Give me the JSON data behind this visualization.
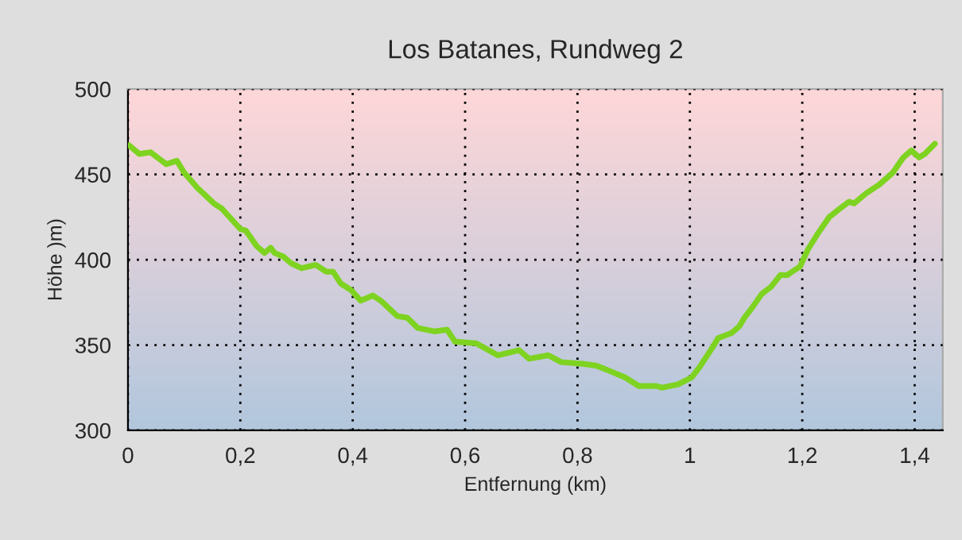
{
  "chart_data": {
    "type": "line",
    "title": "Los Batanes, Rundweg 2",
    "xlabel": "Entfernung (km)",
    "ylabel": "Höhe )m)",
    "xlim": [
      0,
      1.45
    ],
    "xticks": [
      0,
      {
        "value": 0.2,
        "label": "0,2"
      },
      {
        "value": 0.4,
        "label": "0,4"
      },
      {
        "value": 0.6,
        "label": "0,6"
      },
      {
        "value": 0.8,
        "label": "0,8"
      },
      1,
      {
        "value": 1.2,
        "label": "1,2"
      },
      {
        "value": 1.4,
        "label": "1,4"
      }
    ],
    "ylim": [
      300,
      500
    ],
    "yticks": [
      300,
      350,
      400,
      450,
      500
    ],
    "grid": true,
    "line_style": "solid",
    "marker": "none",
    "series": [
      {
        "color": "#7ed321",
        "x": [
          0.002,
          0.02,
          0.04,
          0.068,
          0.087,
          0.1,
          0.124,
          0.153,
          0.167,
          0.2,
          0.21,
          0.229,
          0.243,
          0.254,
          0.261,
          0.276,
          0.29,
          0.309,
          0.334,
          0.353,
          0.365,
          0.379,
          0.398,
          0.414,
          0.436,
          0.45,
          0.479,
          0.497,
          0.516,
          0.545,
          0.568,
          0.582,
          0.62,
          0.658,
          0.696,
          0.714,
          0.748,
          0.771,
          0.809,
          0.833,
          0.856,
          0.885,
          0.909,
          0.941,
          0.95,
          0.979,
          1.003,
          1.017,
          1.031,
          1.043,
          1.05,
          1.074,
          1.088,
          1.097,
          1.111,
          1.128,
          1.144,
          1.161,
          1.173,
          1.182,
          1.196,
          1.21,
          1.229,
          1.248,
          1.267,
          1.283,
          1.292,
          1.314,
          1.337,
          1.361,
          1.38,
          1.394,
          1.408,
          1.418,
          1.436
        ],
        "values": [
          467,
          462,
          463,
          456,
          458,
          451,
          442,
          433,
          430,
          418,
          417,
          408,
          404,
          407,
          404,
          402,
          398,
          395,
          397,
          393,
          393,
          386,
          382,
          376,
          379,
          376,
          367,
          366,
          360,
          358,
          359,
          352,
          351,
          344,
          347,
          342,
          344,
          340,
          339,
          338,
          335,
          331,
          326,
          326,
          325,
          327,
          331,
          337,
          344,
          350,
          354,
          357,
          361,
          366,
          372,
          380,
          384,
          391,
          391,
          393,
          396,
          406,
          416,
          425,
          430,
          434,
          433,
          439,
          444,
          451,
          460,
          464,
          460,
          462,
          468
        ]
      }
    ]
  }
}
